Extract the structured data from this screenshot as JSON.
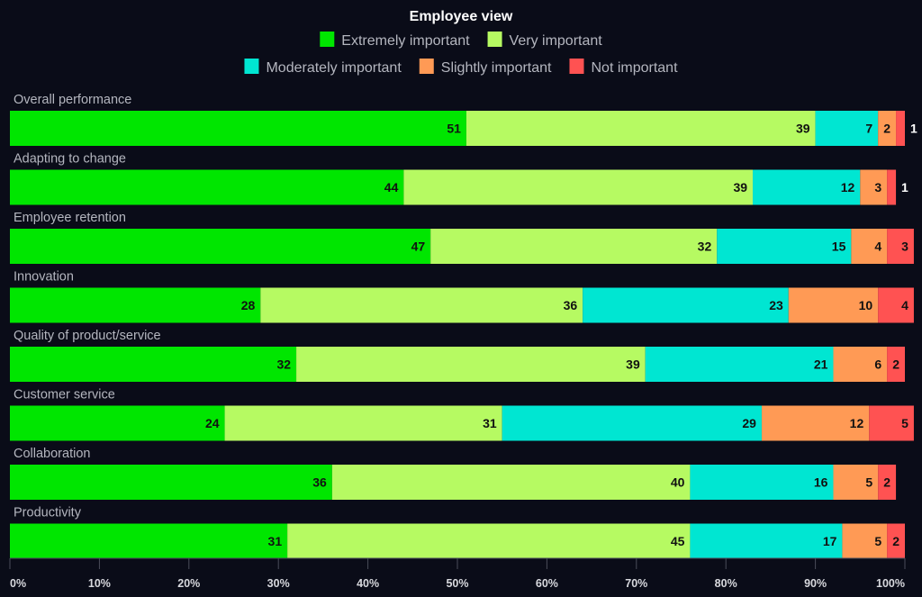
{
  "chart_data": {
    "type": "bar",
    "orientation": "horizontal",
    "stacked": true,
    "title": "Employee view",
    "categories": [
      "Overall performance",
      "Adapting to change",
      "Employee retention",
      "Innovation",
      "Quality of product/service",
      "Customer service",
      "Collaboration",
      "Productivity"
    ],
    "series": [
      {
        "name": "Extremely important",
        "color": "#00e600",
        "values": [
          51,
          44,
          47,
          28,
          32,
          24,
          36,
          31
        ]
      },
      {
        "name": "Very important",
        "color": "#b6fa62",
        "values": [
          39,
          39,
          32,
          36,
          39,
          31,
          40,
          45
        ]
      },
      {
        "name": "Moderately important",
        "color": "#00e6d2",
        "values": [
          7,
          12,
          15,
          23,
          21,
          29,
          16,
          17
        ]
      },
      {
        "name": "Slightly important",
        "color": "#ff9a55",
        "values": [
          2,
          3,
          4,
          10,
          6,
          12,
          5,
          5
        ]
      },
      {
        "name": "Not important",
        "color": "#ff5252",
        "values": [
          1,
          1,
          3,
          4,
          2,
          5,
          2,
          2
        ]
      }
    ],
    "xlim": [
      0,
      100
    ],
    "xticks": [
      "0%",
      "10%",
      "20%",
      "30%",
      "40%",
      "50%",
      "60%",
      "70%",
      "80%",
      "90%",
      "100%"
    ],
    "xlabel": "",
    "ylabel": "",
    "legend_placement": "top-center",
    "grid": false
  }
}
